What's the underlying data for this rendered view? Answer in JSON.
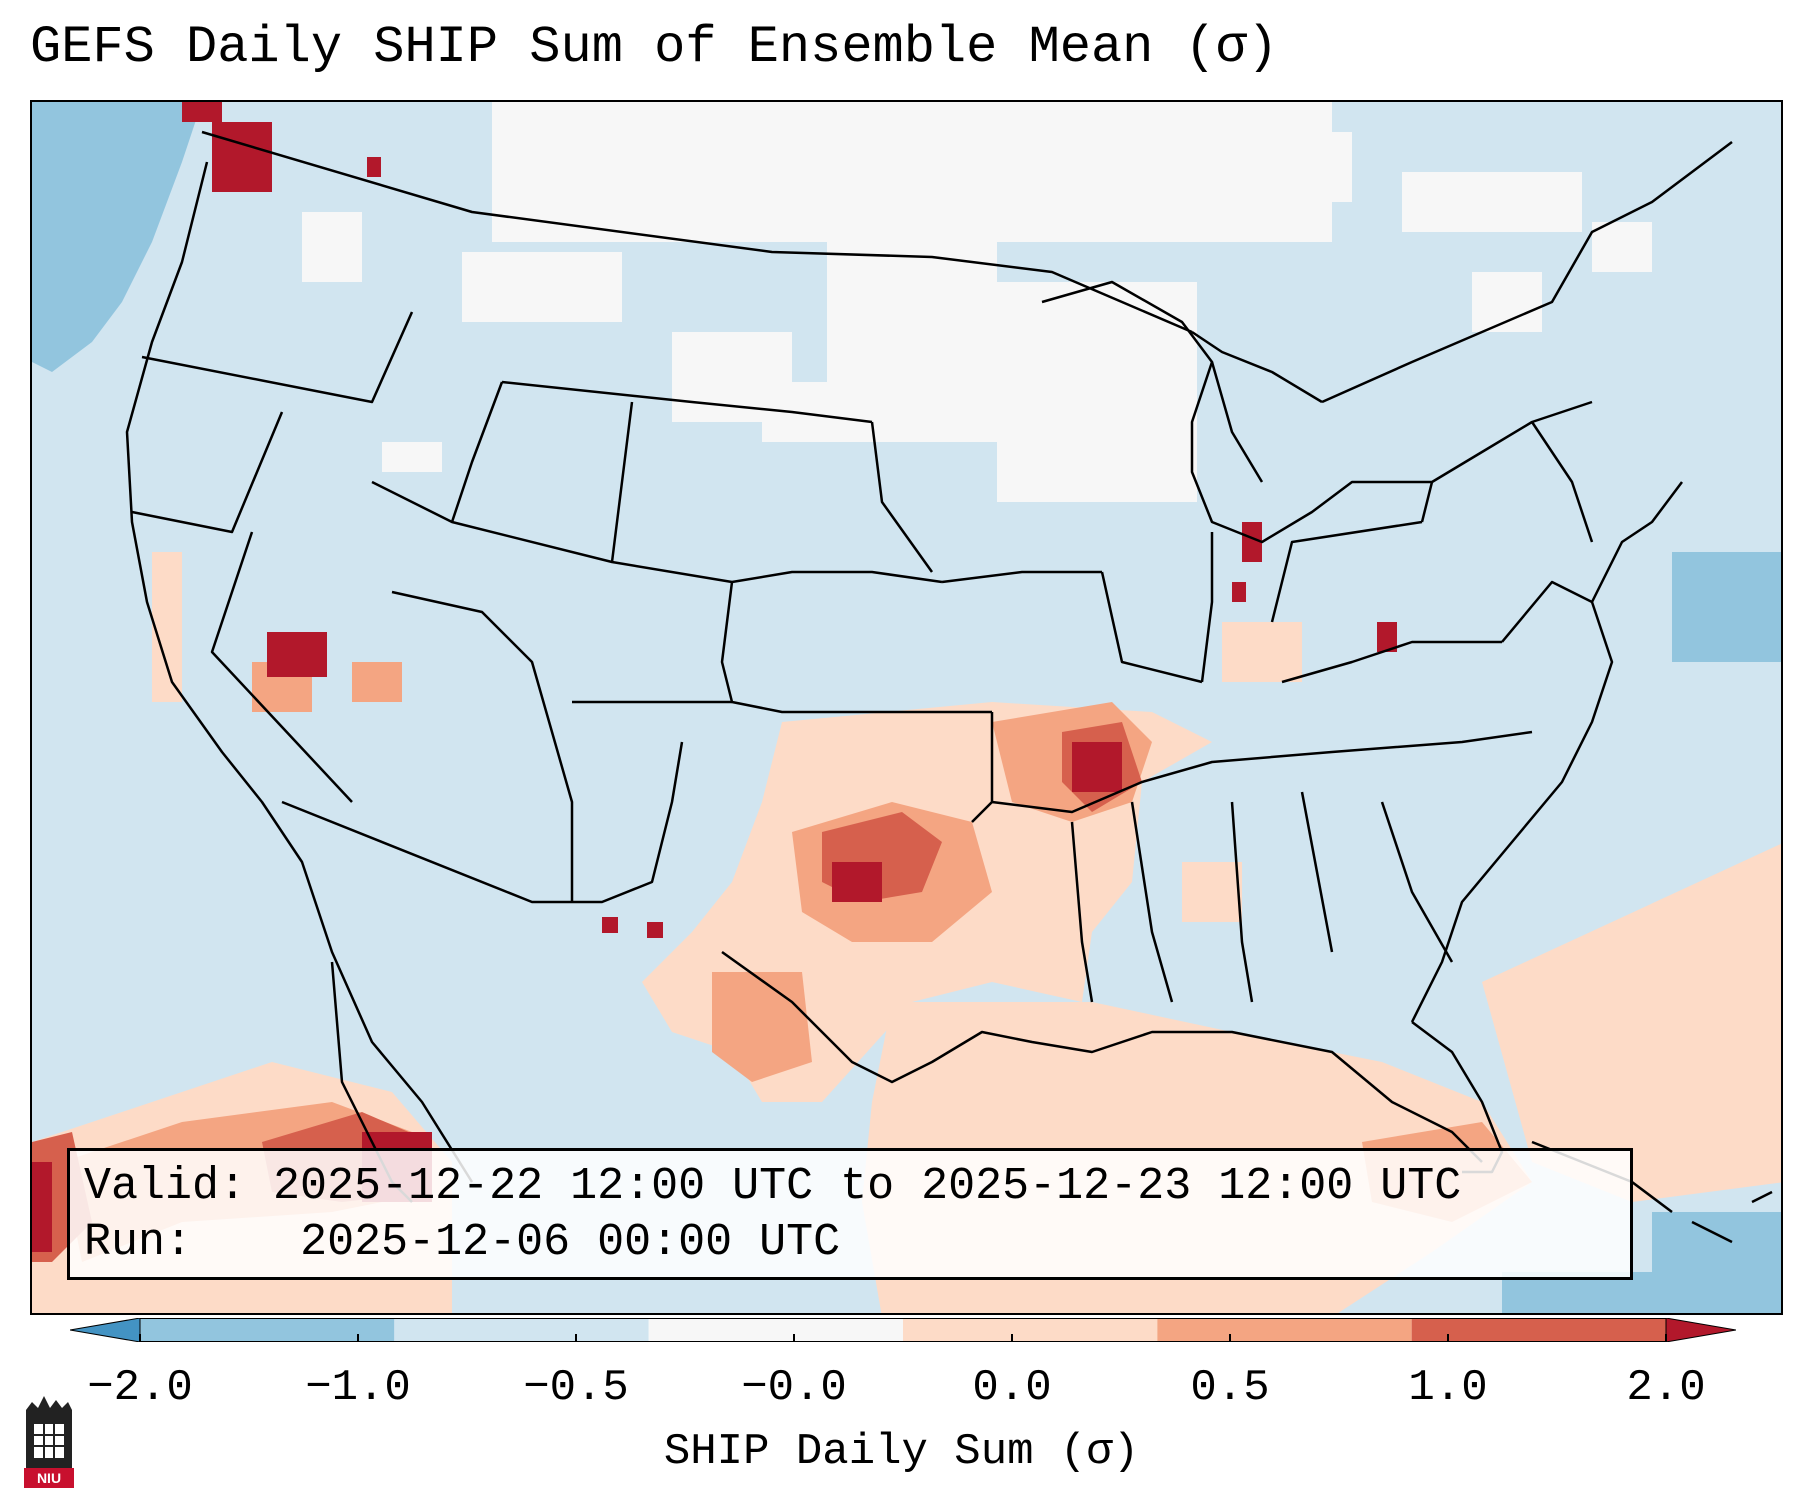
{
  "title": "GEFS Daily SHIP Sum of Ensemble Mean (σ)",
  "info": {
    "valid_label": "Valid:",
    "valid_value": "2025-12-22 12:00 UTC to 2025-12-23 12:00 UTC",
    "run_label": "Run:",
    "run_value": "2025-12-06 00:00 UTC"
  },
  "colorbar": {
    "title": "SHIP Daily Sum (σ)",
    "tick_labels": [
      "−2.0",
      "−1.0",
      "−0.5",
      "−0.0",
      "0.0",
      "0.5",
      "1.0",
      "2.0"
    ],
    "colors": [
      "#4393c3",
      "#92c5de",
      "#d1e5f0",
      "#f7f7f7",
      "#fddbc7",
      "#f4a582",
      "#d6604d",
      "#b2182b"
    ]
  },
  "logo": {
    "text": "NIU",
    "icon": "university-logo-icon"
  }
}
